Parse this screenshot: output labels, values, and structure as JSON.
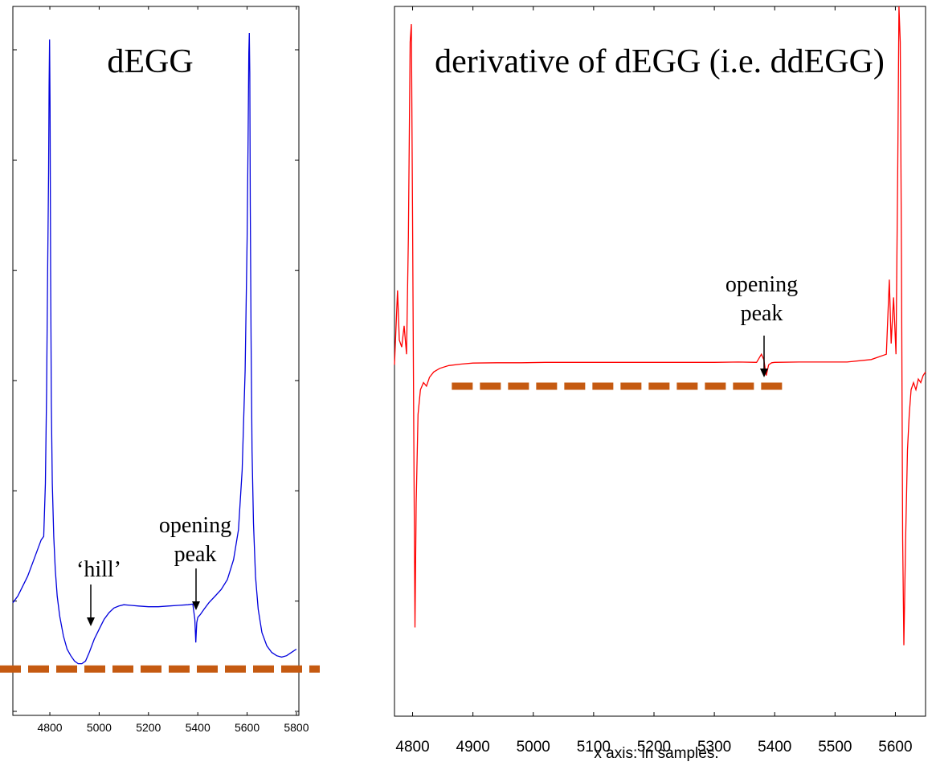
{
  "chart_data": [
    {
      "type": "line",
      "title": "dEGG",
      "xlabel": "",
      "ylabel": "",
      "xlim": [
        4650,
        5810
      ],
      "ylim": [
        -0.07,
        1.0
      ],
      "xticks": [
        4800,
        5000,
        5200,
        5400,
        5600,
        5800
      ],
      "y_tick_count": 7,
      "series": [
        {
          "color": "#0000dd",
          "x": [
            4650,
            4670,
            4690,
            4710,
            4730,
            4750,
            4765,
            4775,
            4782,
            4787,
            4791,
            4795,
            4797,
            4799,
            4801,
            4803,
            4806,
            4810,
            4816,
            4822,
            4830,
            4840,
            4855,
            4870,
            4885,
            4900,
            4915,
            4930,
            4945,
            4960,
            4980,
            5000,
            5020,
            5040,
            5060,
            5080,
            5100,
            5130,
            5160,
            5200,
            5240,
            5280,
            5320,
            5360,
            5380,
            5388,
            5392,
            5396,
            5400,
            5410,
            5425,
            5445,
            5470,
            5495,
            5520,
            5545,
            5565,
            5580,
            5592,
            5600,
            5604,
            5607,
            5609,
            5611,
            5613,
            5616,
            5620,
            5626,
            5634,
            5645,
            5660,
            5680,
            5700,
            5720,
            5740,
            5760,
            5780,
            5800
          ],
          "y": [
            0.1,
            0.11,
            0.125,
            0.14,
            0.16,
            0.18,
            0.195,
            0.2,
            0.28,
            0.42,
            0.6,
            0.75,
            0.88,
            0.95,
            0.85,
            0.6,
            0.4,
            0.28,
            0.2,
            0.15,
            0.11,
            0.08,
            0.05,
            0.03,
            0.02,
            0.012,
            0.008,
            0.008,
            0.012,
            0.025,
            0.045,
            0.06,
            0.075,
            0.085,
            0.092,
            0.095,
            0.097,
            0.096,
            0.095,
            0.094,
            0.094,
            0.095,
            0.096,
            0.097,
            0.098,
            0.075,
            0.04,
            0.07,
            0.078,
            0.082,
            0.09,
            0.1,
            0.11,
            0.12,
            0.135,
            0.165,
            0.21,
            0.3,
            0.45,
            0.65,
            0.8,
            0.93,
            0.96,
            0.9,
            0.7,
            0.5,
            0.33,
            0.22,
            0.14,
            0.09,
            0.055,
            0.035,
            0.025,
            0.02,
            0.018,
            0.02,
            0.025,
            0.03
          ]
        }
      ],
      "annotations": [
        {
          "text_lines": [
            "‘hill’"
          ],
          "x": 4950,
          "y": 0.02
        },
        {
          "text_lines": [
            "opening",
            "peak"
          ],
          "x": 5390,
          "y": 0.1
        }
      ],
      "reference_line": {
        "style": "dashed",
        "color": "#c55a11",
        "y": 0.0
      }
    },
    {
      "type": "line",
      "title": "derivative of dEGG (i.e. ddEGG)",
      "xlabel": "x axis: in samples.",
      "ylabel": "",
      "xlim": [
        4770,
        5650
      ],
      "ylim": [
        -1.0,
        1.0
      ],
      "xticks": [
        4800,
        4900,
        5000,
        5100,
        5200,
        5300,
        5400,
        5500,
        5600
      ],
      "series": [
        {
          "color": "#ff0000",
          "x": [
            4770,
            4775,
            4778,
            4782,
            4786,
            4790,
            4793,
            4796,
            4798,
            4800,
            4802,
            4804,
            4806,
            4809,
            4813,
            4818,
            4823,
            4828,
            4835,
            4845,
            4860,
            4880,
            4900,
            4940,
            4980,
            5020,
            5060,
            5100,
            5140,
            5180,
            5220,
            5260,
            5300,
            5340,
            5370,
            5378,
            5382,
            5386,
            5390,
            5395,
            5400,
            5440,
            5480,
            5520,
            5560,
            5585,
            5590,
            5593,
            5597,
            5601,
            5604,
            5606,
            5608,
            5610,
            5612,
            5614,
            5617,
            5620,
            5623,
            5626,
            5630,
            5634,
            5638,
            5642,
            5646,
            5650
          ],
          "y": [
            -0.01,
            0.2,
            0.06,
            0.04,
            0.1,
            0.02,
            0.35,
            0.9,
            0.95,
            0.4,
            -0.2,
            -0.75,
            -0.4,
            -0.15,
            -0.08,
            -0.06,
            -0.07,
            -0.045,
            -0.03,
            -0.02,
            -0.012,
            -0.008,
            -0.005,
            -0.004,
            -0.004,
            -0.003,
            -0.003,
            -0.003,
            -0.003,
            -0.003,
            -0.003,
            -0.003,
            -0.003,
            -0.002,
            -0.003,
            0.02,
            0.005,
            -0.04,
            -0.01,
            -0.004,
            -0.003,
            -0.002,
            -0.002,
            -0.002,
            0.005,
            0.02,
            0.23,
            0.05,
            0.18,
            0.02,
            0.55,
            1.0,
            0.9,
            0.3,
            -0.5,
            -0.8,
            -0.5,
            -0.25,
            -0.15,
            -0.08,
            -0.06,
            -0.08,
            -0.05,
            -0.06,
            -0.04,
            -0.03
          ]
        }
      ],
      "annotations": [
        {
          "text_lines": [
            "opening",
            "peak"
          ],
          "x": 5382,
          "y": 0.02
        }
      ],
      "reference_line": {
        "style": "dashed",
        "color": "#c55a11",
        "y": -0.07,
        "x_range": [
          4865,
          5415
        ]
      }
    }
  ]
}
